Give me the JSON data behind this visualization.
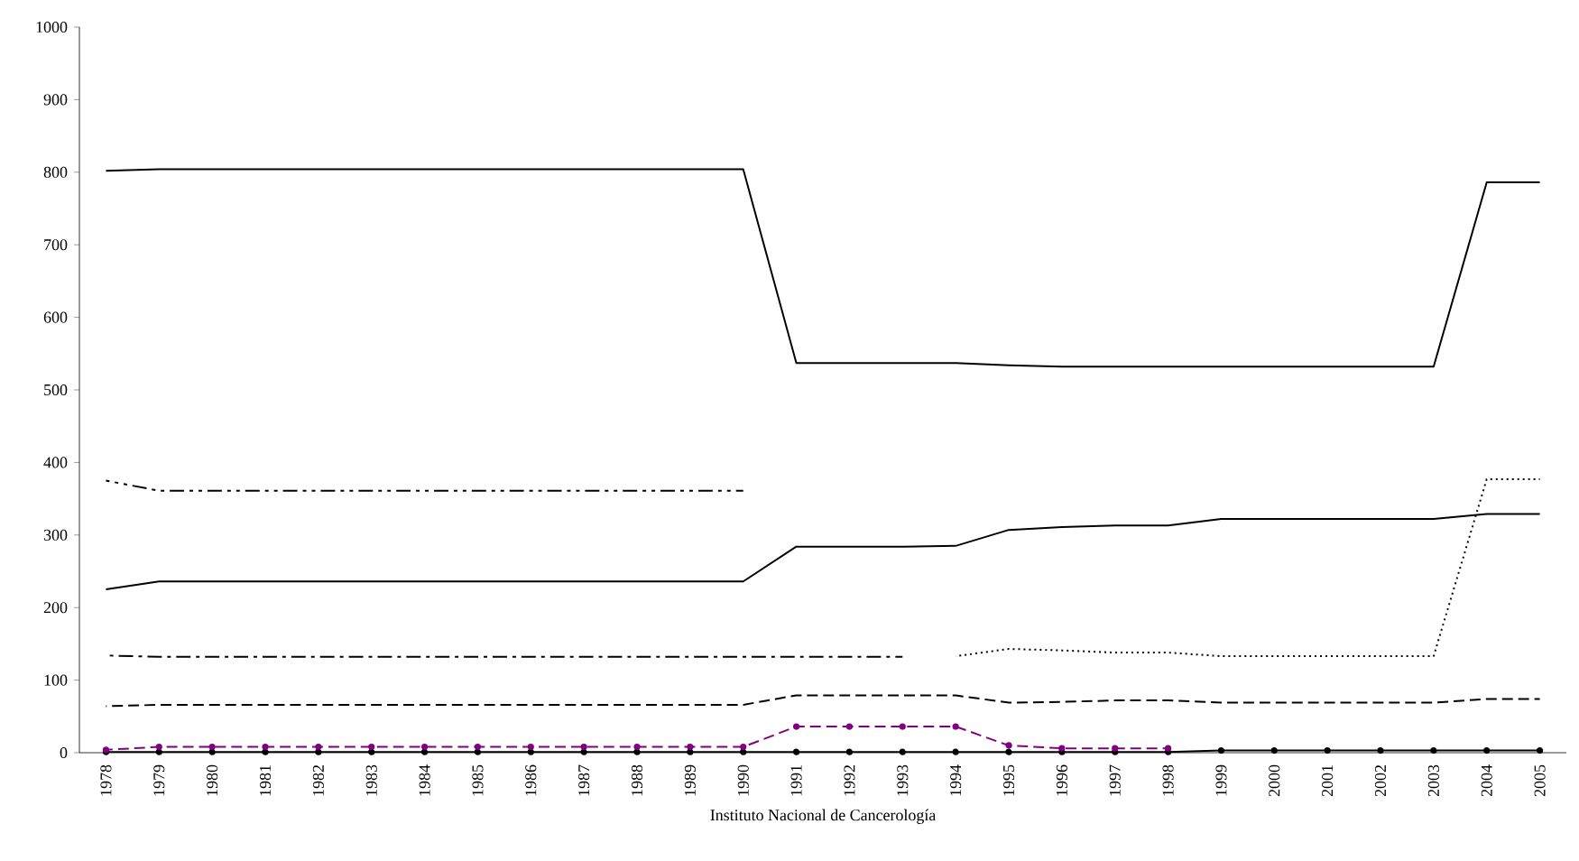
{
  "chart_data": {
    "type": "line",
    "xlabel": "Instituto Nacional de Cancerología",
    "categories": [
      "1978",
      "1979",
      "1980",
      "1981",
      "1982",
      "1983",
      "1984",
      "1985",
      "1986",
      "1987",
      "1988",
      "1989",
      "1990",
      "1991",
      "1992",
      "1993",
      "1994",
      "1995",
      "1996",
      "1997",
      "1998",
      "1999",
      "2000",
      "2001",
      "2002",
      "2003",
      "2004",
      "2005"
    ],
    "ylim": [
      0,
      1000
    ],
    "yticks": [
      0,
      100,
      200,
      300,
      400,
      500,
      600,
      700,
      800,
      900,
      1000
    ],
    "grid": false,
    "series": [
      {
        "color": "#000000",
        "line_style": "solid",
        "marker": "none",
        "values": [
          802,
          804,
          804,
          804,
          804,
          804,
          804,
          804,
          804,
          804,
          804,
          804,
          804,
          537,
          537,
          537,
          537,
          534,
          532,
          532,
          532,
          532,
          532,
          532,
          532,
          532,
          786,
          786
        ]
      },
      {
        "color": "#000000",
        "line_style": "dashdotdot",
        "marker": "none",
        "values": [
          375,
          361,
          361,
          361,
          361,
          361,
          361,
          361,
          361,
          361,
          361,
          361,
          361,
          null,
          null,
          null,
          null,
          null,
          null,
          null,
          null,
          null,
          null,
          null,
          null,
          null,
          null,
          null
        ]
      },
      {
        "color": "#000000",
        "line_style": "solid",
        "marker": "none",
        "values": [
          225,
          236,
          236,
          236,
          236,
          236,
          236,
          236,
          236,
          236,
          236,
          236,
          236,
          284,
          284,
          284,
          285,
          307,
          311,
          313,
          313,
          322,
          322,
          322,
          322,
          322,
          329,
          329
        ]
      },
      {
        "color": "#000000",
        "line_style": "dashdot",
        "marker": "none",
        "values": [
          134,
          132,
          132,
          132,
          132,
          132,
          132,
          132,
          132,
          132,
          132,
          132,
          132,
          132,
          132,
          132,
          null,
          null,
          null,
          null,
          null,
          null,
          null,
          null,
          null,
          null,
          null,
          null
        ]
      },
      {
        "color": "#000000",
        "line_style": "dotted",
        "marker": "none",
        "values": [
          null,
          null,
          null,
          null,
          null,
          null,
          null,
          null,
          null,
          null,
          null,
          null,
          null,
          null,
          null,
          null,
          133,
          143,
          141,
          138,
          138,
          133,
          133,
          133,
          133,
          133,
          377,
          377
        ]
      },
      {
        "color": "#000000",
        "line_style": "dashed",
        "marker": "none",
        "values": [
          64,
          66,
          66,
          66,
          66,
          66,
          66,
          66,
          66,
          66,
          66,
          66,
          66,
          79,
          79,
          79,
          79,
          69,
          70,
          72,
          72,
          69,
          69,
          69,
          69,
          69,
          74,
          74
        ]
      },
      {
        "color": "#000000",
        "line_style": "solid",
        "marker": "circle",
        "values": [
          1,
          1,
          1,
          1,
          1,
          1,
          1,
          1,
          1,
          1,
          1,
          1,
          1,
          1,
          1,
          1,
          1,
          1,
          1,
          1,
          1,
          3,
          3,
          3,
          3,
          3,
          3,
          3
        ]
      },
      {
        "color": "#800080",
        "line_style": "dashed",
        "marker": "circle",
        "values": [
          4,
          8,
          8,
          8,
          8,
          8,
          8,
          8,
          8,
          8,
          8,
          8,
          8,
          36,
          36,
          36,
          36,
          10,
          6,
          6,
          6,
          null,
          null,
          null,
          null,
          null,
          null,
          null
        ]
      }
    ]
  }
}
